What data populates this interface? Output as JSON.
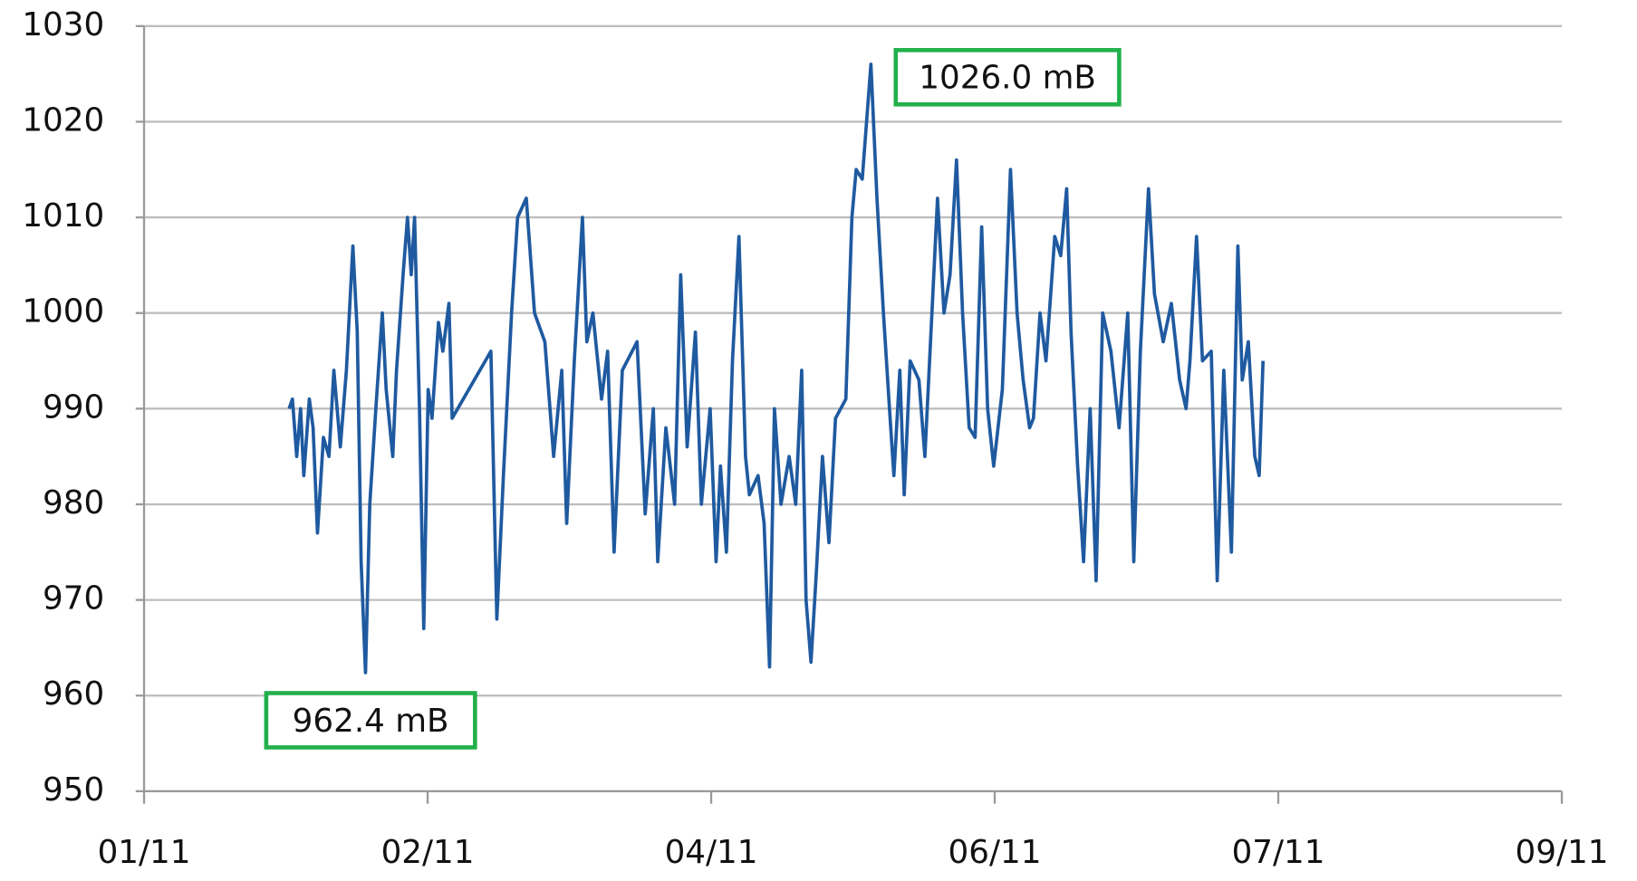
{
  "chart_data": {
    "type": "line",
    "x": [
      26.6,
      27.2,
      28.0,
      28.7,
      29.3,
      30.3,
      31.0,
      31.8,
      32.9,
      33.9,
      34.8,
      36.0,
      37.1,
      38.3,
      39.1,
      39.8,
      40.6,
      41.4,
      42.5,
      43.7,
      44.4,
      45.6,
      46.3,
      47.5,
      48.3,
      49.0,
      49.6,
      50.5,
      51.3,
      52.1,
      52.8,
      54.0,
      54.8,
      55.9,
      56.5,
      63.6,
      64.7,
      65.9,
      67.4,
      68.5,
      70.1,
      71.6,
      73.5,
      75.1,
      76.6,
      77.5,
      78.9,
      80.4,
      81.2,
      82.3,
      83.9,
      85.0,
      86.2,
      87.7,
      90.4,
      91.9,
      93.4,
      94.2,
      95.7,
      97.3,
      98.4,
      99.6,
      101.1,
      102.2,
      103.8,
      104.9,
      105.7,
      106.8,
      107.9,
      109.1,
      110.3,
      111.0,
      112.6,
      113.7,
      114.7,
      115.6,
      116.8,
      118.3,
      119.5,
      120.6,
      121.4,
      122.3,
      123.3,
      124.4,
      125.6,
      126.8,
      128.7,
      129.8,
      130.6,
      131.7,
      133.3,
      134.4,
      135.6,
      136.7,
      137.5,
      138.6,
      139.4,
      140.5,
      142.1,
      143.2,
      144.4,
      145.5,
      146.7,
      147.8,
      149.0,
      150.1,
      151.3,
      152.4,
      153.6,
      154.7,
      155.8,
      157.4,
      158.9,
      160.1,
      161.2,
      162.4,
      163.1,
      164.3,
      165.4,
      167.0,
      168.1,
      169.2,
      170.0,
      171.2,
      172.3,
      173.5,
      174.6,
      175.8,
      177.3,
      178.8,
      180.4,
      181.5,
      182.7,
      184.2,
      185.3,
      186.9,
      188.4,
      189.9,
      191.1,
      191.8,
      193.0,
      194.1,
      195.7,
      196.8,
      198.0,
      199.4,
      200.6,
      201.4,
      202.5,
      203.7,
      204.5,
      205.2
    ],
    "series": [
      {
        "color": "#1f5aa0",
        "values": [
          990,
          991,
          985,
          990,
          983,
          991,
          988,
          977,
          987,
          985,
          994,
          986,
          994,
          1007,
          998,
          974,
          962.4,
          980,
          990,
          1000,
          992,
          985,
          994,
          1004,
          1010,
          1004,
          1010,
          990,
          967,
          992,
          989,
          999,
          996,
          1001,
          989,
          996,
          968,
          983,
          1000,
          1010,
          1012,
          1000,
          997,
          985,
          994,
          978,
          995,
          1010,
          997,
          1000,
          991,
          996,
          975,
          994,
          997,
          979,
          990,
          974,
          988,
          980,
          1004,
          986,
          998,
          980,
          990,
          974,
          984,
          975,
          995,
          1008,
          985,
          981,
          983,
          978,
          963,
          990,
          980,
          985,
          980,
          994,
          970,
          963.5,
          973,
          985,
          976,
          989,
          991,
          1010,
          1015,
          1014,
          1026.0,
          1012,
          1000,
          990,
          983,
          994,
          981,
          995,
          993,
          985,
          999,
          1012,
          1000,
          1004,
          1016,
          1000,
          988,
          987,
          1009,
          990,
          984,
          992,
          1015,
          1000,
          993,
          988,
          989,
          1000,
          995,
          1008,
          1006,
          1013,
          998,
          984,
          974,
          990,
          972,
          1000,
          996,
          988,
          1000,
          974,
          996,
          1013,
          1002,
          997,
          1001,
          993,
          990,
          995,
          1008,
          995,
          996,
          972,
          994,
          975,
          1007,
          993,
          997,
          985,
          983,
          995
        ]
      }
    ],
    "xlim": [
      0,
      260
    ],
    "xticks": [
      {
        "value": 0,
        "label": "01/11"
      },
      {
        "value": 52,
        "label": "02/11"
      },
      {
        "value": 104,
        "label": "04/11"
      },
      {
        "value": 156,
        "label": "06/11"
      },
      {
        "value": 208,
        "label": "07/11"
      },
      {
        "value": 260,
        "label": "09/11"
      }
    ],
    "ylim": [
      950,
      1030
    ],
    "yticks": [
      950,
      960,
      970,
      980,
      990,
      1000,
      1010,
      1020,
      1030
    ],
    "grid": true,
    "annotations": [
      "1026.0 mB",
      "962.4 mB"
    ]
  }
}
